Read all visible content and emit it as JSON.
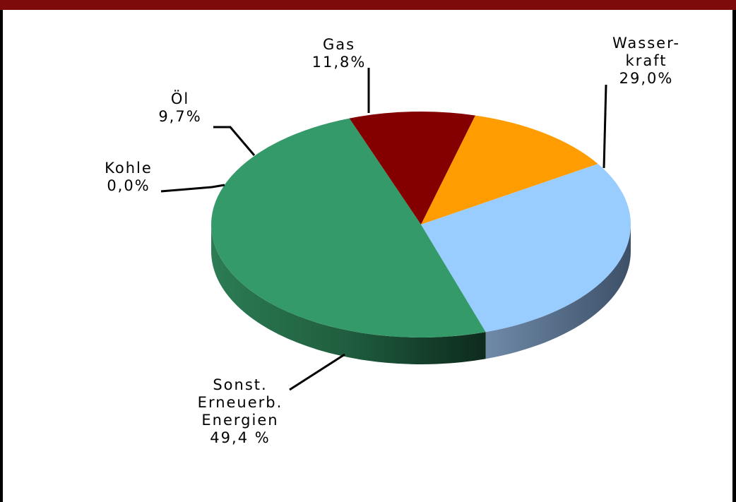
{
  "chart_data": {
    "type": "pie",
    "slices": [
      {
        "name": "Gas",
        "value": 11.8,
        "label_lines": [
          "Gas",
          "11,8%"
        ],
        "color": "#ff9d00"
      },
      {
        "name": "Wasserkraft",
        "value": 29.0,
        "label_lines": [
          "Wasser-",
          "kraft",
          "29,0%"
        ],
        "color": "#99ccff"
      },
      {
        "name": "Sonst. Erneuerb. Energien",
        "value": 49.4,
        "label_lines": [
          "Sonst.",
          "Erneuerb.",
          "Energien",
          "49,4 %"
        ],
        "color": "#359a6a"
      },
      {
        "name": "Kohle",
        "value": 0.0,
        "label_lines": [
          "Kohle",
          "0,0%"
        ],
        "color": "#333333"
      },
      {
        "name": "Öl",
        "value": 9.7,
        "label_lines": [
          "Öl",
          "9,7%"
        ],
        "color": "#840000"
      }
    ],
    "legend": "none"
  },
  "colors": {
    "frame_band": "#7e0b0b",
    "border": "#000000"
  }
}
